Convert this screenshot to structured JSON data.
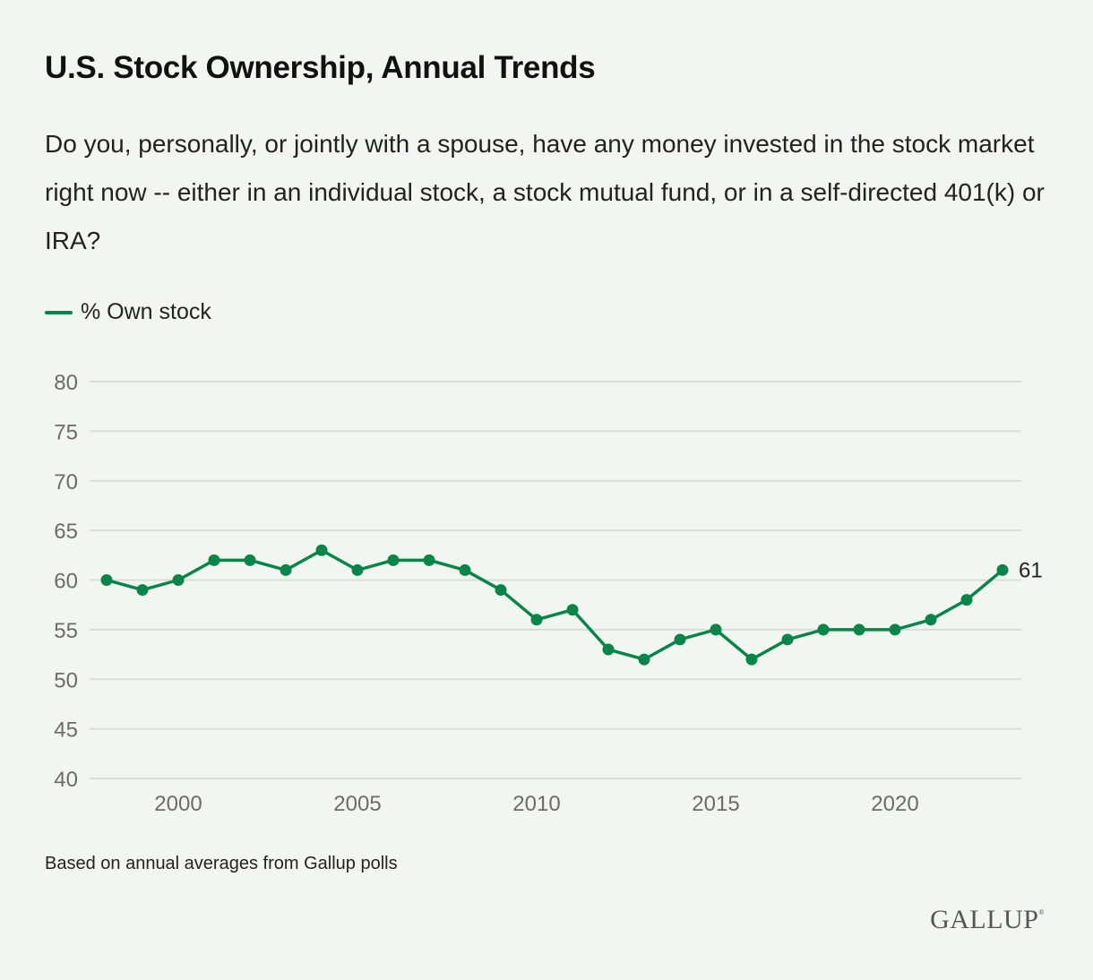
{
  "header": {
    "title": "U.S. Stock Ownership, Annual Trends",
    "subtitle": "Do you, personally, or jointly with a spouse, have any money invested in the stock market right now -- either in an individual stock, a stock mutual fund, or in a self-directed 401(k) or IRA?"
  },
  "legend": {
    "label": "% Own stock"
  },
  "footer": {
    "note": "Based on annual averages from Gallup polls"
  },
  "logo": {
    "text": "GALLUP",
    "mark": "®"
  },
  "colors": {
    "line": "#0a8549",
    "grid": "#d9ddd8",
    "tick": "#6b6b6b",
    "background": "#f1f7f0"
  },
  "chart_data": {
    "type": "line",
    "title": "U.S. Stock Ownership, Annual Trends",
    "xlabel": "",
    "ylabel": "",
    "x": [
      1998,
      1999,
      2000,
      2001,
      2002,
      2003,
      2004,
      2005,
      2006,
      2007,
      2008,
      2009,
      2010,
      2011,
      2012,
      2013,
      2014,
      2015,
      2016,
      2017,
      2018,
      2019,
      2020,
      2021,
      2022,
      2023
    ],
    "series": [
      {
        "name": "% Own stock",
        "values": [
          60,
          59,
          60,
          62,
          62,
          61,
          63,
          61,
          62,
          62,
          61,
          59,
          56,
          57,
          53,
          52,
          54,
          55,
          52,
          54,
          55,
          55,
          55,
          56,
          58,
          61
        ]
      }
    ],
    "ylim": [
      40,
      80
    ],
    "yticks": [
      40,
      45,
      50,
      55,
      60,
      65,
      70,
      75,
      80
    ],
    "xticks": [
      2000,
      2005,
      2010,
      2015,
      2020
    ],
    "grid": true,
    "legend_position": "top-left",
    "annotations": [
      {
        "x": 2023,
        "text": "61"
      }
    ]
  }
}
